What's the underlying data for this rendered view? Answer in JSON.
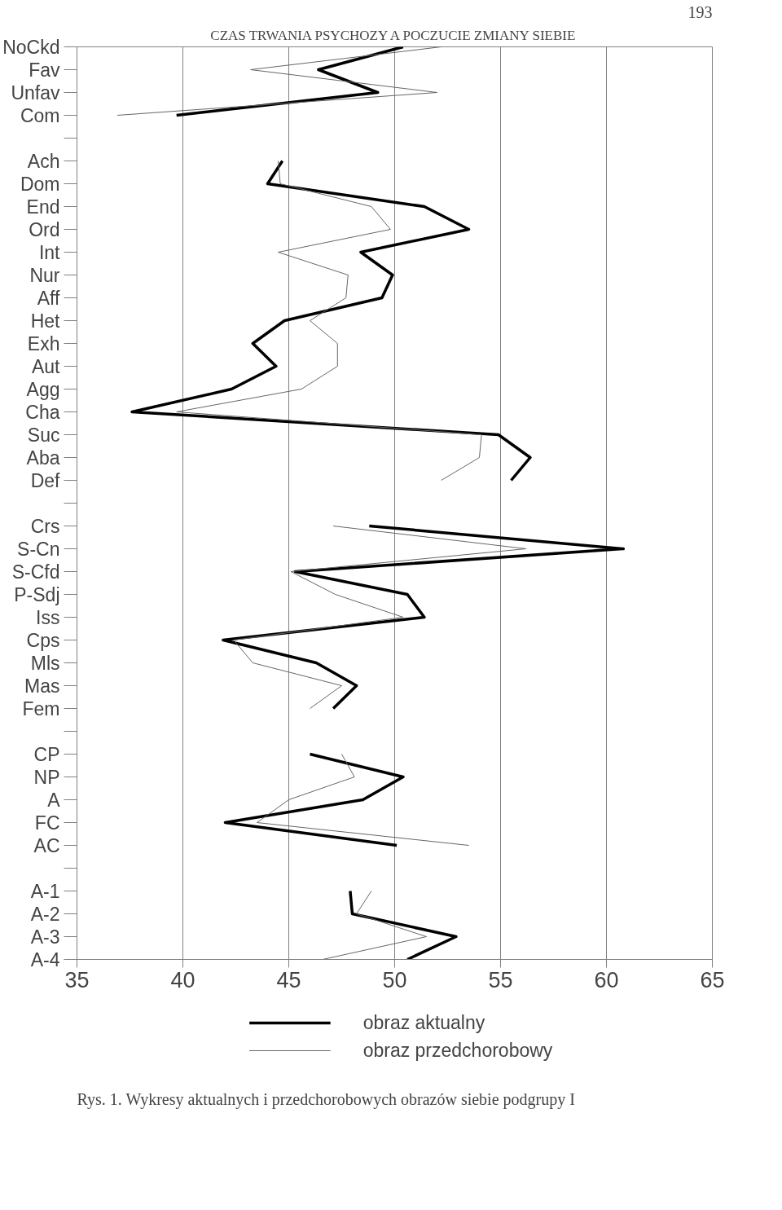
{
  "chart_data": {
    "type": "line",
    "orientation": "horizontal",
    "categories": [
      "NoCkd",
      "Fav",
      "Unfav",
      "Com",
      null,
      "Ach",
      "Dom",
      "End",
      "Ord",
      "Int",
      "Nur",
      "Aff",
      "Het",
      "Exh",
      "Aut",
      "Agg",
      "Cha",
      "Suc",
      "Aba",
      "Def",
      null,
      "Crs",
      "S-Cn",
      "S-Cfd",
      "P-Sdj",
      "Iss",
      "Cps",
      "Mls",
      "Mas",
      "Fem",
      null,
      "CP",
      "NP",
      "A",
      "FC",
      "AC",
      null,
      "A-1",
      "A-2",
      "A-3",
      "A-4"
    ],
    "series": [
      {
        "name": "obraz aktualny",
        "color": "#000000",
        "values": [
          50.4,
          46.4,
          49.2,
          39.7,
          null,
          44.7,
          44.0,
          51.4,
          53.5,
          48.4,
          49.9,
          49.4,
          44.8,
          43.3,
          44.4,
          42.3,
          37.6,
          54.9,
          56.4,
          55.5,
          null,
          48.8,
          60.8,
          45.3,
          50.6,
          51.4,
          41.9,
          46.3,
          48.2,
          47.1,
          null,
          46.0,
          50.4,
          48.5,
          42.0,
          50.1,
          null,
          47.9,
          48.0,
          52.9,
          50.6
        ]
      },
      {
        "name": "obraz przedchorobowy",
        "color": "#666666",
        "values": [
          52.2,
          43.2,
          52.0,
          36.9,
          null,
          44.5,
          44.6,
          48.9,
          49.8,
          44.5,
          47.8,
          47.7,
          46.0,
          47.3,
          47.3,
          45.6,
          39.7,
          54.1,
          54.0,
          52.2,
          null,
          47.1,
          56.2,
          45.1,
          47.2,
          50.4,
          42.4,
          43.3,
          47.5,
          46.0,
          null,
          47.5,
          48.1,
          45.0,
          43.5,
          53.5,
          null,
          48.9,
          48.2,
          51.5,
          46.6
        ]
      }
    ],
    "xlim": [
      35,
      65
    ],
    "xticks": [
      35,
      40,
      45,
      50,
      55,
      60,
      65
    ],
    "grid": "x",
    "legend": "bottom",
    "annotations": [
      "CZAS TRWANIA PSYCHOZY A POCZUCIE ZMIANY SIEBIE",
      "193",
      "Rys. 1. Wykresy aktualnych i przedchorobowych obrazów siebie podgrupy I"
    ]
  }
}
